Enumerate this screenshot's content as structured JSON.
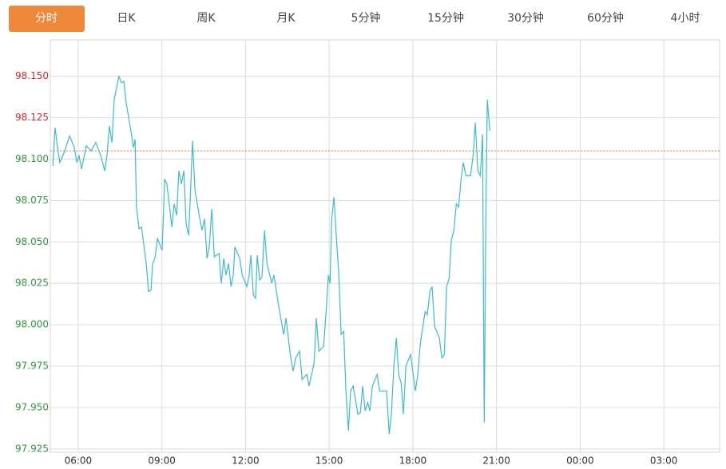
{
  "tabs": [
    "分时",
    "日K",
    "周K",
    "月K",
    "5分钟",
    "15分钟",
    "30分钟",
    "60分钟",
    "4小时"
  ],
  "active_tab": 0,
  "chart_data": {
    "type": "line",
    "color": "#3bbccc",
    "grid": true,
    "ref_value": 98.105,
    "ref_color": "#e8743b",
    "up_color": "#d9262b",
    "down_color": "#2e9a3a",
    "xlim": [
      5,
      29
    ],
    "xticks": [
      {
        "value": 6,
        "label": "06:00"
      },
      {
        "value": 9,
        "label": "09:00"
      },
      {
        "value": 12,
        "label": "12:00"
      },
      {
        "value": 15,
        "label": "15:00"
      },
      {
        "value": 18,
        "label": "18:00"
      },
      {
        "value": 21,
        "label": "21:00"
      },
      {
        "value": 24,
        "label": "00:00"
      },
      {
        "value": 27,
        "label": "03:00"
      }
    ],
    "ylim": [
      97.923,
      98.172
    ],
    "yticks": [
      {
        "value": 97.925,
        "label": "97.925"
      },
      {
        "value": 97.95,
        "label": "97.950"
      },
      {
        "value": 97.975,
        "label": "97.975"
      },
      {
        "value": 98,
        "label": "98.000"
      },
      {
        "value": 98.025,
        "label": "98.025"
      },
      {
        "value": 98.05,
        "label": "98.050"
      },
      {
        "value": 98.075,
        "label": "98.075"
      },
      {
        "value": 98.1,
        "label": "98.100"
      },
      {
        "value": 98.125,
        "label": "98.125"
      },
      {
        "value": 98.15,
        "label": "98.150"
      }
    ],
    "x": [
      5.09,
      5.17,
      5.26,
      5.34,
      5.52,
      5.69,
      5.86,
      5.95,
      6.03,
      6.12,
      6.29,
      6.46,
      6.63,
      6.81,
      6.95,
      7.03,
      7.12,
      7.21,
      7.29,
      7.46,
      7.55,
      7.64,
      7.72,
      7.89,
      7.98,
      8.04,
      8.09,
      8.18,
      8.27,
      8.44,
      8.52,
      8.61,
      8.67,
      8.75,
      8.84,
      9.01,
      9.1,
      9.18,
      9.36,
      9.44,
      9.53,
      9.61,
      9.7,
      9.79,
      9.87,
      9.96,
      10.04,
      10.1,
      10.19,
      10.36,
      10.44,
      10.53,
      10.62,
      10.7,
      10.79,
      10.88,
      11.05,
      11.13,
      11.22,
      11.3,
      11.39,
      11.48,
      11.56,
      11.62,
      11.79,
      11.88,
      12.05,
      12.13,
      12.19,
      12.28,
      12.36,
      12.42,
      12.51,
      12.59,
      12.68,
      12.77,
      12.94,
      13.02,
      13.19,
      13.37,
      13.45,
      13.62,
      13.71,
      13.8,
      13.94,
      14.03,
      14.2,
      14.28,
      14.46,
      14.54,
      14.63,
      14.8,
      14.89,
      14.97,
      15.03,
      15.09,
      15.17,
      15.26,
      15.34,
      15.43,
      15.52,
      15.6,
      15.69,
      15.77,
      15.86,
      16.03,
      16.12,
      16.2,
      16.29,
      16.38,
      16.46,
      16.55,
      16.72,
      16.81,
      17.06,
      17.15,
      17.23,
      17.32,
      17.41,
      17.49,
      17.58,
      17.66,
      17.75,
      17.92,
      18.01,
      18.09,
      18.18,
      18.27,
      18.44,
      18.52,
      18.61,
      18.69,
      18.78,
      18.95,
      19.04,
      19.13,
      19.21,
      19.3,
      19.38,
      19.47,
      19.56,
      19.64,
      19.73,
      19.81,
      19.9,
      20.07,
      20.16,
      20.24,
      20.33,
      20.42,
      20.5,
      20.56,
      20.62,
      20.67,
      20.76
    ],
    "values": [
      98.096,
      98.119,
      98.107,
      98.098,
      98.105,
      98.114,
      98.107,
      98.098,
      98.102,
      98.094,
      98.108,
      98.105,
      98.11,
      98.102,
      98.093,
      98.102,
      98.12,
      98.11,
      98.136,
      98.15,
      98.146,
      98.147,
      98.134,
      98.117,
      98.107,
      98.112,
      98.071,
      98.058,
      98.059,
      98.037,
      98.02,
      98.021,
      98.037,
      98.04,
      98.052,
      98.045,
      98.088,
      98.085,
      98.059,
      98.073,
      98.066,
      98.093,
      98.085,
      98.093,
      98.061,
      98.054,
      98.085,
      98.111,
      98.081,
      98.064,
      98.057,
      98.064,
      98.04,
      98.047,
      98.07,
      98.041,
      98.043,
      98.025,
      98.04,
      98.03,
      98.037,
      98.023,
      98.03,
      98.047,
      98.04,
      98.03,
      98.023,
      98.03,
      98.042,
      98.018,
      98.016,
      98.042,
      98.027,
      98.029,
      98.057,
      98.037,
      98.025,
      98.03,
      98.011,
      97.994,
      98.004,
      97.98,
      97.972,
      97.98,
      97.984,
      97.967,
      97.97,
      97.963,
      97.977,
      98.004,
      97.984,
      97.987,
      98.008,
      98.03,
      98.025,
      98.064,
      98.077,
      98.052,
      98.032,
      97.994,
      97.996,
      97.96,
      97.936,
      97.96,
      97.963,
      97.946,
      97.947,
      97.963,
      97.948,
      97.953,
      97.948,
      97.963,
      97.97,
      97.96,
      97.96,
      97.934,
      97.946,
      97.975,
      97.992,
      97.97,
      97.965,
      97.946,
      97.975,
      97.982,
      97.97,
      97.96,
      97.97,
      97.989,
      98.008,
      98.006,
      98.02,
      98.023,
      97.999,
      97.992,
      97.98,
      97.982,
      98.023,
      98.028,
      98.051,
      98.057,
      98.073,
      98.071,
      98.088,
      98.098,
      98.09,
      98.09,
      98.102,
      98.122,
      98.093,
      98.09,
      98.115,
      97.941,
      98.067,
      98.136,
      98.117
    ]
  }
}
